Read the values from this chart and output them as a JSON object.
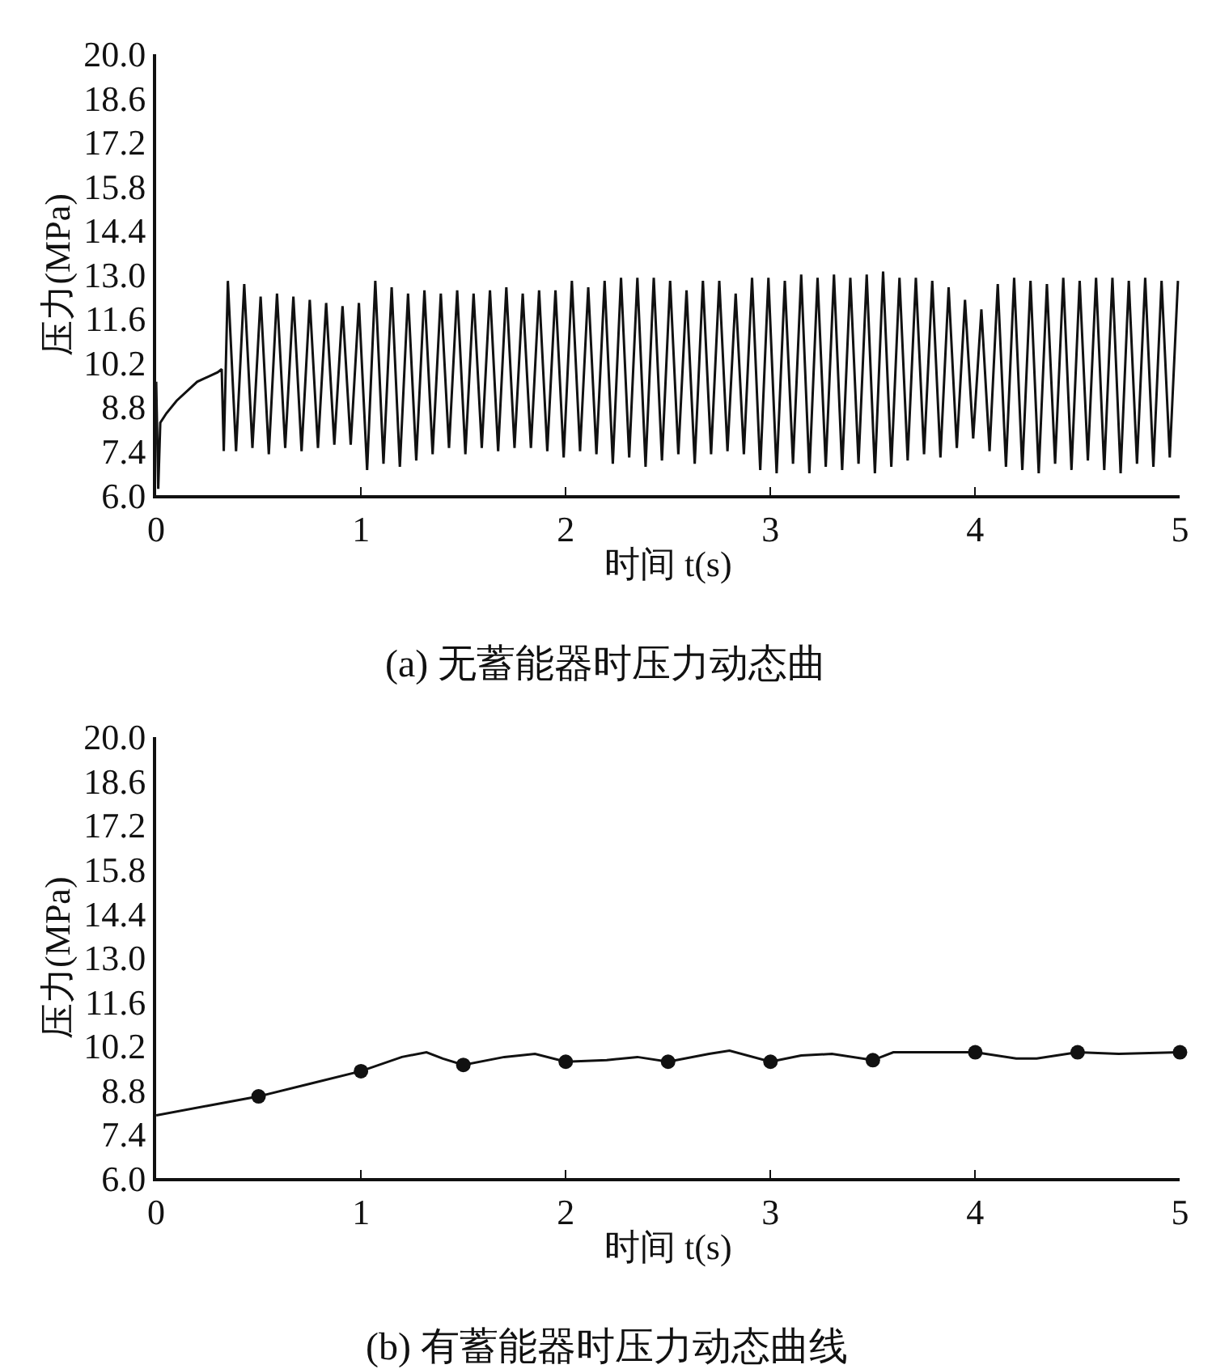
{
  "chart_data": [
    {
      "type": "line",
      "title": "(a) 无蓄能器时压力动态曲",
      "xlabel": "时间 t(s)",
      "ylabel": "压力(MPa)",
      "xlim": [
        0,
        5
      ],
      "xticks": [
        0,
        1,
        2,
        3,
        4,
        5
      ],
      "ylim": [
        6,
        20
      ],
      "yticks": [
        {
          "value": 6,
          "label": "6.0"
        },
        7.4,
        8.8,
        10.2,
        11.6,
        {
          "value": 13,
          "label": "13.0"
        },
        14.4,
        15.8,
        17.2,
        18.6,
        {
          "value": 20,
          "label": "20.0"
        }
      ],
      "marker": "none",
      "line_style": "solid",
      "series": [
        {
          "color": "#111111",
          "x": [
            0,
            0.01,
            0.02,
            0.05,
            0.1,
            0.2,
            0.3,
            0.32,
            0.33,
            0.35,
            0.39,
            0.43,
            0.47,
            0.51,
            0.55,
            0.59,
            0.63,
            0.67,
            0.71,
            0.75,
            0.79,
            0.83,
            0.87,
            0.91,
            0.95,
            0.99,
            1.03,
            1.07,
            1.11,
            1.15,
            1.19,
            1.23,
            1.27,
            1.31,
            1.35,
            1.39,
            1.43,
            1.47,
            1.51,
            1.55,
            1.59,
            1.63,
            1.67,
            1.71,
            1.75,
            1.79,
            1.83,
            1.87,
            1.91,
            1.95,
            1.99,
            2.03,
            2.07,
            2.11,
            2.15,
            2.19,
            2.23,
            2.27,
            2.31,
            2.35,
            2.39,
            2.43,
            2.47,
            2.51,
            2.55,
            2.59,
            2.63,
            2.67,
            2.71,
            2.75,
            2.79,
            2.83,
            2.87,
            2.91,
            2.95,
            2.99,
            3.03,
            3.07,
            3.11,
            3.15,
            3.19,
            3.23,
            3.27,
            3.31,
            3.35,
            3.39,
            3.43,
            3.47,
            3.51,
            3.55,
            3.59,
            3.63,
            3.67,
            3.71,
            3.75,
            3.79,
            3.83,
            3.87,
            3.91,
            3.95,
            3.99,
            4.03,
            4.07,
            4.11,
            4.15,
            4.19,
            4.23,
            4.27,
            4.31,
            4.35,
            4.39,
            4.43,
            4.47,
            4.51,
            4.55,
            4.59,
            4.63,
            4.67,
            4.71,
            4.75,
            4.79,
            4.83,
            4.87,
            4.91,
            4.95,
            4.99
          ],
          "values": [
            9.6,
            6.2,
            8.3,
            8.6,
            9.0,
            9.6,
            9.9,
            10.0,
            7.4,
            12.8,
            7.4,
            12.7,
            7.5,
            12.3,
            7.3,
            12.4,
            7.5,
            12.3,
            7.4,
            12.2,
            7.5,
            12.1,
            7.6,
            12.0,
            7.6,
            12.1,
            6.8,
            12.8,
            7.0,
            12.6,
            6.9,
            12.4,
            7.1,
            12.5,
            7.3,
            12.4,
            7.5,
            12.5,
            7.3,
            12.4,
            7.5,
            12.5,
            7.4,
            12.6,
            7.5,
            12.4,
            7.5,
            12.5,
            7.4,
            12.5,
            7.2,
            12.8,
            7.4,
            12.6,
            7.3,
            12.8,
            7.0,
            12.9,
            7.2,
            12.9,
            6.9,
            12.9,
            7.1,
            12.8,
            7.3,
            12.5,
            7.0,
            12.8,
            7.3,
            12.8,
            7.4,
            12.4,
            7.3,
            12.9,
            6.8,
            12.9,
            6.7,
            12.8,
            7.0,
            13.0,
            6.7,
            12.9,
            6.9,
            13.0,
            6.8,
            12.9,
            7.0,
            13.0,
            6.7,
            13.1,
            6.9,
            12.9,
            7.1,
            12.9,
            7.3,
            12.8,
            7.2,
            12.6,
            7.5,
            12.2,
            7.8,
            11.9,
            7.4,
            12.7,
            6.9,
            12.9,
            6.8,
            12.8,
            6.7,
            12.7,
            7.0,
            12.9,
            6.8,
            12.8,
            7.1,
            12.9,
            6.8,
            12.9,
            6.7,
            12.8,
            7.0,
            12.9,
            6.9,
            12.8,
            7.2,
            12.8
          ]
        }
      ]
    },
    {
      "type": "line",
      "title": "(b) 有蓄能器时压力动态曲线",
      "xlabel": "时间 t(s)",
      "ylabel": "压力(MPa)",
      "xlim": [
        0,
        5
      ],
      "xticks": [
        0,
        1,
        2,
        3,
        4,
        5
      ],
      "ylim": [
        6,
        20
      ],
      "yticks": [
        {
          "value": 6,
          "label": "6.0"
        },
        7.4,
        8.8,
        10.2,
        11.6,
        {
          "value": 13,
          "label": "13.0"
        },
        14.4,
        15.8,
        17.2,
        18.6,
        {
          "value": 20,
          "label": "20.0"
        }
      ],
      "series": [
        {
          "color": "#111111",
          "marker": "none",
          "line_style": "solid",
          "x": [
            0,
            0.25,
            0.5,
            0.75,
            1.0,
            1.2,
            1.32,
            1.4,
            1.5,
            1.7,
            1.85,
            2.0,
            2.2,
            2.35,
            2.5,
            2.7,
            2.8,
            3.0,
            3.15,
            3.3,
            3.5,
            3.6,
            3.8,
            4.0,
            4.2,
            4.3,
            4.5,
            4.7,
            5.0
          ],
          "values": [
            8.0,
            8.3,
            8.6,
            9.0,
            9.4,
            9.85,
            10.0,
            9.8,
            9.6,
            9.85,
            9.95,
            9.7,
            9.75,
            9.85,
            9.7,
            9.95,
            10.05,
            9.7,
            9.9,
            9.95,
            9.75,
            10.0,
            10.0,
            10.0,
            9.8,
            9.8,
            10.0,
            9.95,
            10.0
          ]
        },
        {
          "type": "scatter",
          "color": "#111111",
          "marker": "circle",
          "x": [
            0.5,
            1.0,
            1.5,
            2.0,
            2.5,
            3.0,
            3.5,
            4.0,
            4.5,
            5.0
          ],
          "values": [
            8.6,
            9.4,
            9.6,
            9.7,
            9.7,
            9.7,
            9.75,
            10.0,
            10.0,
            10.0
          ]
        }
      ]
    }
  ]
}
